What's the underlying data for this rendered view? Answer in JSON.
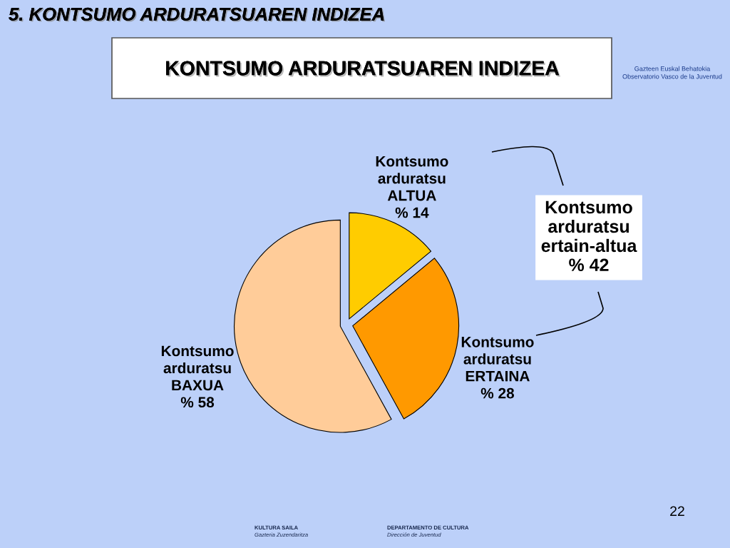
{
  "chart_data": {
    "type": "pie",
    "title": "KONTSUMO ARDURATSUAREN INDIZEA",
    "categories": [
      "Kontsumo\narduratsu\nALTUA",
      "Kontsumo\narduratsu\nERTAINA",
      "Kontsumo\narduratsu\nBAXUA"
    ],
    "values": [
      14,
      28,
      58
    ],
    "value_labels": [
      "% 14",
      "% 28",
      "% 58"
    ],
    "colors": [
      "#ffcc00",
      "#ff9900",
      "#ffcc99"
    ],
    "annotations": [
      "5. KONTSUMO ARDURATSUAREN INDIZEA",
      "Kontsumo\narduratsu\nertain-altua\n% 42",
      "22",
      "KULTURA SAILA",
      "Gazteria Zuzendaritza",
      "DEPARTAMENTO DE CULTURA",
      "Dirección de Juventud",
      "Gazteen Euskal Behatokia",
      "Observatorio Vasco de la Juventud"
    ]
  }
}
